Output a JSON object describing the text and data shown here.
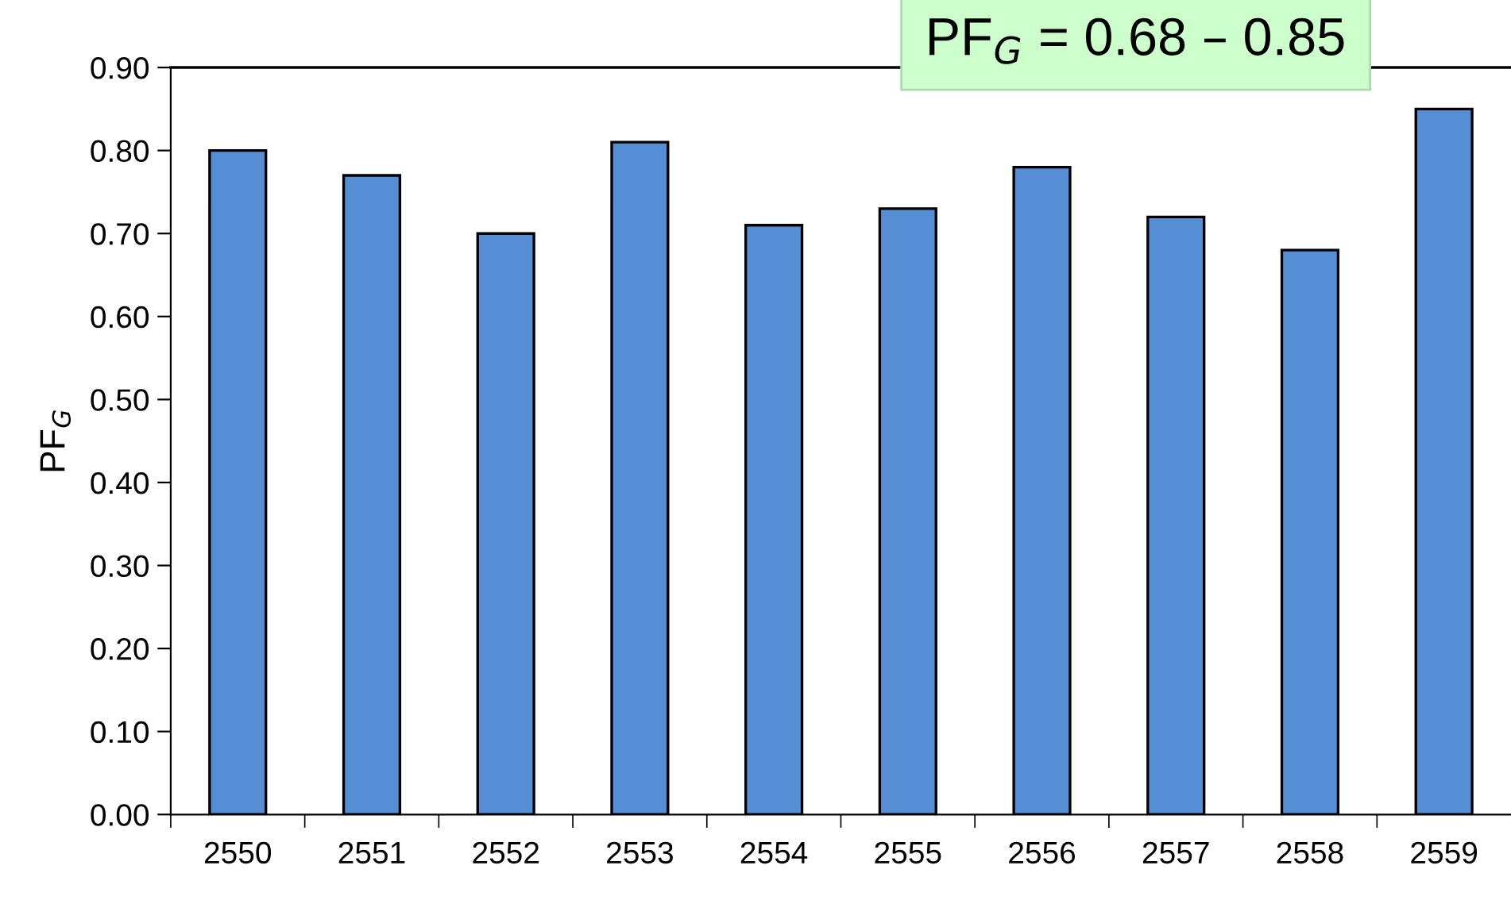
{
  "chart_data": {
    "type": "bar",
    "ylabel": "PF$_{G}$",
    "categories": [
      "2550",
      "2551",
      "2552",
      "2553",
      "2554",
      "2555",
      "2556",
      "2557",
      "2558",
      "2559"
    ],
    "values": [
      0.8,
      0.77,
      0.7,
      0.81,
      0.71,
      0.73,
      0.78,
      0.72,
      0.68,
      0.85
    ],
    "color": "#558ed5",
    "ylim": [
      0,
      0.9
    ],
    "yticks": [
      {
        "value": 0,
        "label": "0.00"
      },
      {
        "value": 0.1,
        "label": "0.10"
      },
      {
        "value": 0.2,
        "label": "0.20"
      },
      {
        "value": 0.3,
        "label": "0.30"
      },
      {
        "value": 0.4,
        "label": "0.40"
      },
      {
        "value": 0.5,
        "label": "0.50"
      },
      {
        "value": 0.6,
        "label": "0.60"
      },
      {
        "value": 0.7,
        "label": "0.70"
      },
      {
        "value": 0.8,
        "label": "0.80"
      },
      {
        "value": 0.9,
        "label": "0.90"
      }
    ],
    "annotations": [
      "PF$_{G}$ = 0.68 – 0.85"
    ],
    "grid": false,
    "legend": false
  }
}
